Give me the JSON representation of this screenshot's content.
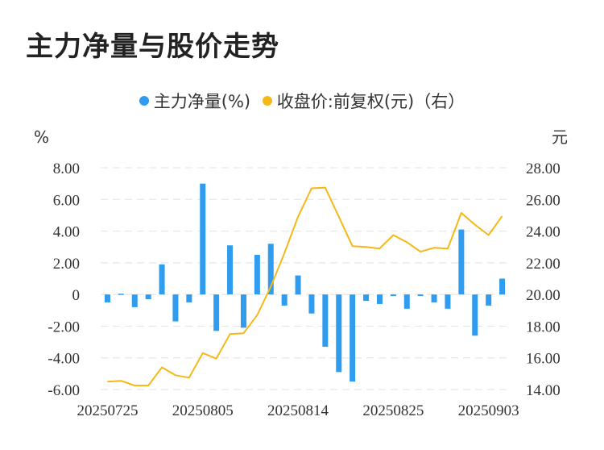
{
  "title": "主力净量与股价走势",
  "colors": {
    "bar": "#2f9cf0",
    "line": "#f5b817",
    "grid": "#e6e6e6",
    "text": "#333333"
  },
  "chart_data": {
    "type": "bar+line",
    "title": "主力净量与股价走势",
    "legend": [
      {
        "name": "主力净量(%)",
        "color": "#2f9cf0"
      },
      {
        "name": "收盘价:前复权(元)（右）",
        "color": "#f5b817"
      }
    ],
    "y_left_unit": "%",
    "y_right_unit": "元",
    "y_left_ticks": [
      "8.00",
      "6.00",
      "4.00",
      "2.00",
      "0",
      "-2.00",
      "-4.00",
      "-6.00"
    ],
    "y_right_ticks": [
      "28.00",
      "26.00",
      "24.00",
      "22.00",
      "20.00",
      "18.00",
      "16.00",
      "14.00"
    ],
    "ylim_left": [
      -6,
      8
    ],
    "ylim_right": [
      14,
      28
    ],
    "x_tick_labels": [
      "20250725",
      "20250805",
      "20250814",
      "20250825",
      "20250903"
    ],
    "x_tick_indices": [
      0,
      7,
      14,
      21,
      28
    ],
    "series": [
      {
        "name": "主力净量(%)",
        "type": "bar",
        "axis": "left",
        "values": [
          -0.5,
          0.05,
          -0.8,
          -0.3,
          1.9,
          -1.7,
          -0.5,
          7.0,
          -2.3,
          3.1,
          -2.1,
          2.5,
          3.2,
          -0.7,
          1.2,
          -1.2,
          -3.3,
          -4.9,
          -5.5,
          -0.4,
          -0.6,
          -0.1,
          -0.9,
          -0.1,
          -0.5,
          -0.9,
          4.1,
          -2.6,
          -0.7,
          1.0
        ]
      },
      {
        "name": "收盘价:前复权(元)（右）",
        "type": "line",
        "axis": "right",
        "values": [
          14.5,
          14.55,
          14.25,
          14.25,
          15.4,
          14.9,
          14.75,
          16.3,
          15.95,
          17.5,
          17.55,
          18.7,
          20.5,
          22.6,
          24.9,
          26.7,
          26.75,
          24.9,
          23.05,
          23.0,
          22.9,
          23.75,
          23.3,
          22.7,
          22.95,
          22.9,
          25.15,
          24.4,
          23.75,
          24.95
        ]
      }
    ]
  }
}
